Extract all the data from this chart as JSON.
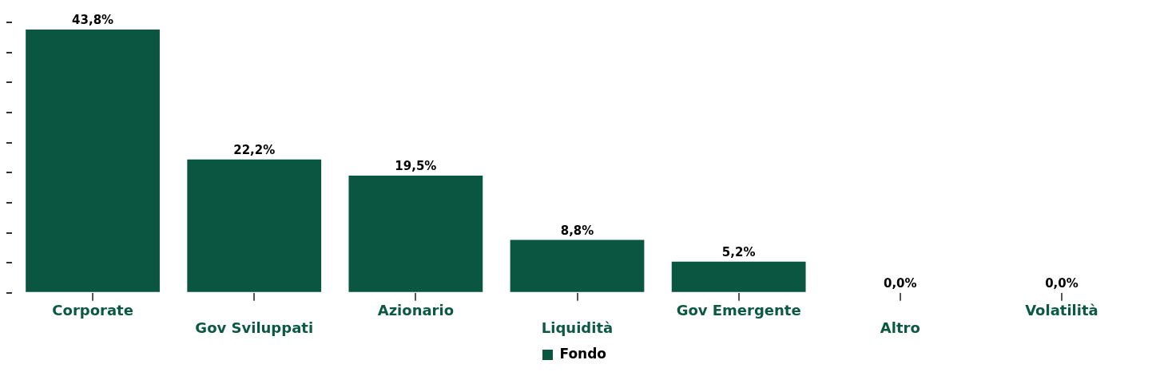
{
  "chart_data": {
    "type": "bar",
    "categories": [
      "Corporate",
      "Gov Sviluppati",
      "Azionario",
      "Liquidità",
      "Gov Emergente",
      "Altro",
      "Volatilità"
    ],
    "series": [
      {
        "name": "Fondo",
        "color": "#0b5640",
        "values": [
          43.8,
          22.2,
          19.5,
          8.8,
          5.2,
          0.0,
          0.0
        ],
        "value_labels": [
          "43,8%",
          "22,2%",
          "19,5%",
          "8,8%",
          "5,2%",
          "0,0%",
          "0,0%"
        ]
      }
    ],
    "tick_labels": "x",
    "grid": false,
    "legend": "bottom"
  }
}
